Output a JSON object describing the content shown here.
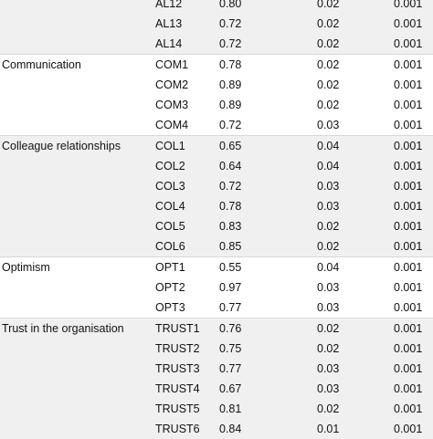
{
  "groups": [
    {
      "construct": "",
      "rows": [
        {
          "item": "AL12",
          "loading": "0.80",
          "se": "0.02",
          "p": "0.001"
        },
        {
          "item": "AL13",
          "loading": "0.72",
          "se": "0.02",
          "p": "0.001"
        },
        {
          "item": "AL14",
          "loading": "0.72",
          "se": "0.02",
          "p": "0.001"
        }
      ]
    },
    {
      "construct": "Communication",
      "rows": [
        {
          "item": "COM1",
          "loading": "0.78",
          "se": "0.02",
          "p": "0.001"
        },
        {
          "item": "COM2",
          "loading": "0.89",
          "se": "0.02",
          "p": "0.001"
        },
        {
          "item": "COM3",
          "loading": "0.89",
          "se": "0.02",
          "p": "0.001"
        },
        {
          "item": "COM4",
          "loading": "0.72",
          "se": "0.03",
          "p": "0.001"
        }
      ]
    },
    {
      "construct": "Colleague relationships",
      "rows": [
        {
          "item": "COL1",
          "loading": "0.65",
          "se": "0.04",
          "p": "0.001"
        },
        {
          "item": "COL2",
          "loading": "0.64",
          "se": "0.04",
          "p": "0.001"
        },
        {
          "item": "COL3",
          "loading": "0.72",
          "se": "0.03",
          "p": "0.001"
        },
        {
          "item": "COL4",
          "loading": "0.78",
          "se": "0.03",
          "p": "0.001"
        },
        {
          "item": "COL5",
          "loading": "0.83",
          "se": "0.02",
          "p": "0.001"
        },
        {
          "item": "COL6",
          "loading": "0.85",
          "se": "0.02",
          "p": "0.001"
        }
      ]
    },
    {
      "construct": "Optimism",
      "rows": [
        {
          "item": "OPT1",
          "loading": "0.55",
          "se": "0.04",
          "p": "0.001"
        },
        {
          "item": "OPT2",
          "loading": "0.97",
          "se": "0.03",
          "p": "0.001"
        },
        {
          "item": "OPT3",
          "loading": "0.77",
          "se": "0.03",
          "p": "0.001"
        }
      ]
    },
    {
      "construct": "Trust in the organisation",
      "rows": [
        {
          "item": "TRUST1",
          "loading": "0.76",
          "se": "0.02",
          "p": "0.001"
        },
        {
          "item": "TRUST2",
          "loading": "0.75",
          "se": "0.02",
          "p": "0.001"
        },
        {
          "item": "TRUST3",
          "loading": "0.77",
          "se": "0.03",
          "p": "0.001"
        },
        {
          "item": "TRUST4",
          "loading": "0.67",
          "se": "0.03",
          "p": "0.001"
        },
        {
          "item": "TRUST5",
          "loading": "0.81",
          "se": "0.02",
          "p": "0.001"
        },
        {
          "item": "TRUST6",
          "loading": "0.84",
          "se": "0.01",
          "p": "0.001"
        }
      ]
    }
  ]
}
